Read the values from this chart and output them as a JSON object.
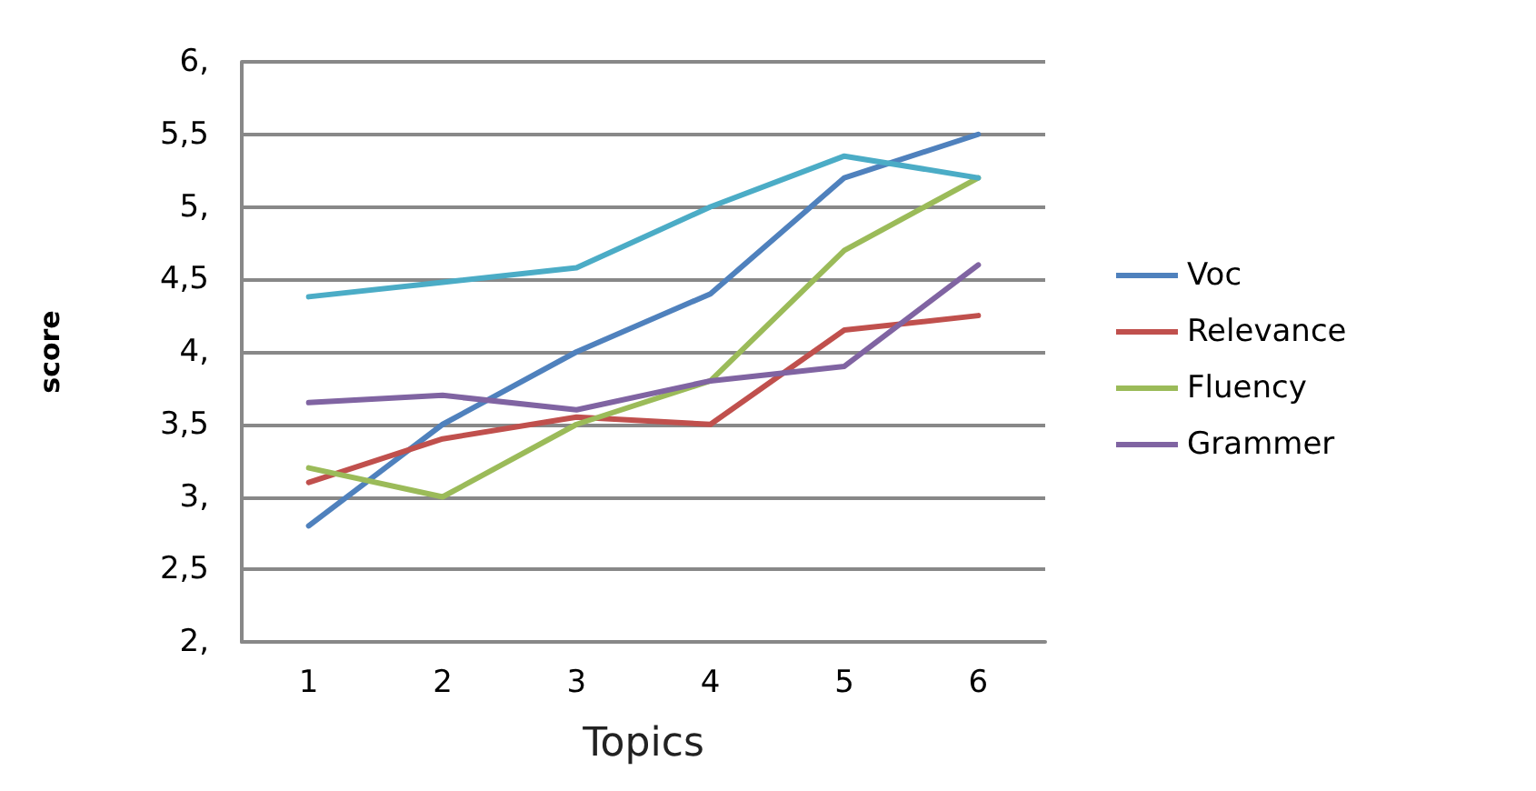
{
  "chart_data": {
    "type": "line",
    "xlabel": "Topics",
    "ylabel": "score",
    "categories": [
      "1",
      "2",
      "3",
      "4",
      "5",
      "6"
    ],
    "series": [
      {
        "name": "Voc",
        "color": "#4f81bd",
        "values": [
          2.8,
          3.5,
          4.0,
          4.4,
          5.2,
          5.5
        ]
      },
      {
        "name": "Relevance",
        "color": "#c0504d",
        "values": [
          3.1,
          3.4,
          3.55,
          3.5,
          4.15,
          4.25
        ]
      },
      {
        "name": "Fluency",
        "color": "#9bbb59",
        "values": [
          3.2,
          3.0,
          3.5,
          3.8,
          4.7,
          5.2
        ]
      },
      {
        "name": "Grammer",
        "color": "#8064a2",
        "values": [
          3.65,
          3.7,
          3.6,
          3.8,
          3.9,
          4.6
        ]
      },
      {
        "color": "#4bacc6",
        "values": [
          4.38,
          4.48,
          4.58,
          5.0,
          5.35,
          5.2
        ]
      }
    ],
    "ylim": [
      2,
      6
    ],
    "yticks": [
      {
        "value": 2,
        "label": "2,"
      },
      {
        "value": 2.5,
        "label": "2,5"
      },
      {
        "value": 3,
        "label": "3,"
      },
      {
        "value": 3.5,
        "label": "3,5"
      },
      {
        "value": 4,
        "label": "4,"
      },
      {
        "value": 4.5,
        "label": "4,5"
      },
      {
        "value": 5,
        "label": "5,"
      },
      {
        "value": 5.5,
        "label": "5,5"
      },
      {
        "value": 6,
        "label": "6,"
      }
    ],
    "grid": "y",
    "legend": "right",
    "marker": "none",
    "line_style": "solid"
  }
}
